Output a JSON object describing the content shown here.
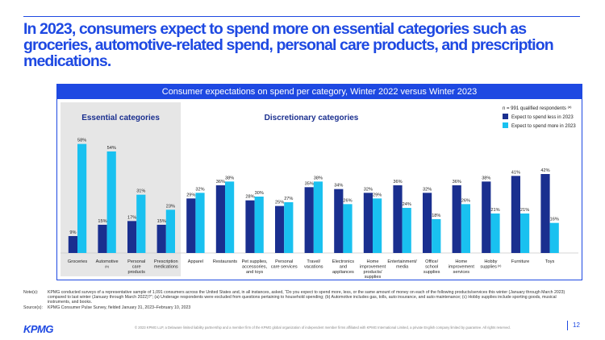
{
  "title": "In 2023, consumers expect to spend more on essential categories such as groceries, automotive-related spend, personal care products, and prescription medications.",
  "chart_data": {
    "type": "bar",
    "title": "Consumer expectations on spend per category, Winter 2022 versus Winter 2023",
    "groups": [
      "Essential categories",
      "Discretionary categories"
    ],
    "essential_count": 4,
    "sample_note": "n = 991 qualified respondents",
    "sample_sup": "(a)",
    "categories": [
      {
        "label": [
          "Groceries"
        ],
        "sup": ""
      },
      {
        "label": [
          "Automotive"
        ],
        "sup": "(b)"
      },
      {
        "label": [
          "Personal",
          "care",
          "products"
        ],
        "sup": ""
      },
      {
        "label": [
          "Prescription",
          "medications"
        ],
        "sup": ""
      },
      {
        "label": [
          "Apparel"
        ],
        "sup": ""
      },
      {
        "label": [
          "Restaurants"
        ],
        "sup": ""
      },
      {
        "label": [
          "Pet supplies,",
          "accessories,",
          "and toys"
        ],
        "sup": ""
      },
      {
        "label": [
          "Personal",
          "care services"
        ],
        "sup": ""
      },
      {
        "label": [
          "Travel/",
          "vacations"
        ],
        "sup": ""
      },
      {
        "label": [
          "Electronics",
          "and",
          "appliances"
        ],
        "sup": ""
      },
      {
        "label": [
          "Home",
          "improvement",
          "products/",
          "supplies"
        ],
        "sup": ""
      },
      {
        "label": [
          "Entertainment/",
          "media"
        ],
        "sup": ""
      },
      {
        "label": [
          "Office/",
          "school",
          "supplies"
        ],
        "sup": ""
      },
      {
        "label": [
          "Home",
          "improvement",
          "services"
        ],
        "sup": ""
      },
      {
        "label": [
          "Hobby",
          "supplies"
        ],
        "sup": "(c)"
      },
      {
        "label": [
          "Furniture"
        ],
        "sup": ""
      },
      {
        "label": [
          "Toys"
        ],
        "sup": ""
      }
    ],
    "series": [
      {
        "name": "Expect to spend less in 2023",
        "color": "#1a2f8f",
        "values": [
          9,
          15,
          17,
          15,
          29,
          36,
          28,
          25,
          35,
          34,
          32,
          36,
          32,
          36,
          38,
          41,
          42
        ]
      },
      {
        "name": "Expect to spend more in 2023",
        "color": "#19c1f0",
        "values": [
          58,
          54,
          31,
          23,
          32,
          38,
          30,
          27,
          38,
          26,
          29,
          24,
          18,
          26,
          21,
          21,
          16
        ]
      }
    ],
    "value_suffix": "%",
    "ylim": [
      0,
      60
    ],
    "colors": {
      "accent": "#1e49e2",
      "essential_bg": "#e6e6e6"
    }
  },
  "notes": [
    {
      "key": "Note(s):",
      "text": "KPMG conducted surveys of a representative sample of 1,091 consumers across the United States and, in all instances, asked, “Do you expect to spend more, less, or the same amount of money on each of the following products/services this winter (January through March 2023) compared to last winter (January through March 2022)?”; (a) Underage respondents were excluded from questions pertaining to household spending; (b) Automotive includes gas, tolls, auto insurance, and auto maintenance; (c) Hobby supplies include sporting goods, musical instruments, and books."
    },
    {
      "key": "Source(s):",
      "text": "KPMG Consumer Pulse Survey, fielded January 31, 2023–February 10, 2023"
    }
  ],
  "footer": {
    "logo": "KPMG",
    "copyright": "© 2023 KPMG LLP, a Delaware limited liability partnership and a member firm of the KPMG global organization of independent member firms affiliated with KPMG International Limited, a private English company limited by guarantee. All rights reserved.",
    "page": "12"
  }
}
